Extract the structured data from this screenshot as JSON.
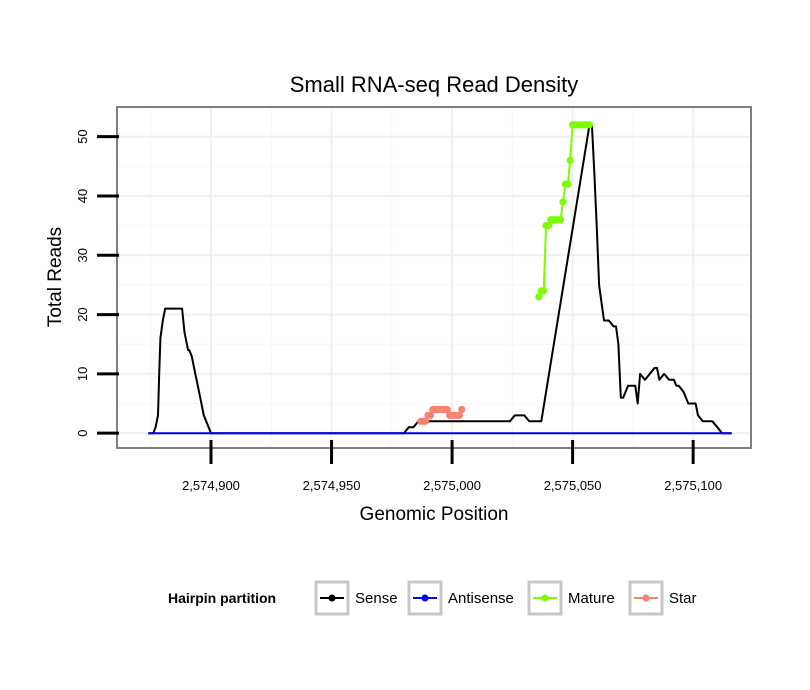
{
  "chart_data": {
    "type": "line",
    "title": "Small RNA-seq Read Density",
    "xlabel": "Genomic Position",
    "ylabel": "Total Reads",
    "xlim": [
      2574861,
      2575124
    ],
    "ylim": [
      -2.5,
      55
    ],
    "x_ticks": [
      2574900,
      2574950,
      2575000,
      2575050,
      2575100
    ],
    "x_tick_labels": [
      "2,574,900",
      "2,574,950",
      "2,575,000",
      "2,575,050",
      "2,575,100"
    ],
    "y_ticks": [
      0,
      10,
      20,
      30,
      40,
      50
    ],
    "y_tick_labels": [
      "0",
      "10",
      "20",
      "30",
      "40",
      "50"
    ],
    "grid": true,
    "legend": {
      "title": "Hairpin partition",
      "placement": "bottom",
      "entries": [
        {
          "label": "Sense",
          "color": "#000000"
        },
        {
          "label": "Antisense",
          "color": "#0000ff"
        },
        {
          "label": "Mature",
          "color": "#7cfc00"
        },
        {
          "label": "Star",
          "color": "#fa8072"
        }
      ]
    },
    "series": [
      {
        "name": "Sense",
        "color": "#000000",
        "x": [
          2574874,
          2574876,
          2574877,
          2574877.5,
          2574878,
          2574878.5,
          2574879,
          2574880,
          2574880.5,
          2574881,
          2574888,
          2574888.5,
          2574889,
          2574890,
          2574890.5,
          2574891,
          2574892,
          2574892.5,
          2574893,
          2574893.5,
          2574894,
          2574894.5,
          2574895,
          2574895.5,
          2574896,
          2574896.5,
          2574897,
          2574898,
          2574899,
          2574900,
          2574901,
          2574902,
          2574903,
          2574904,
          2574980,
          2574982,
          2574984,
          2574986,
          2575010,
          2575012,
          2575014,
          2575016,
          2575018,
          2575020,
          2575022,
          2575024,
          2575026,
          2575028,
          2575030,
          2575032,
          2575034,
          2575036,
          2575037,
          2575057,
          2575058,
          2575059,
          2575060,
          2575061,
          2575062,
          2575063,
          2575064,
          2575065,
          2575067,
          2575068,
          2575069,
          2575070,
          2575071,
          2575072,
          2575073,
          2575075,
          2575076,
          2575077,
          2575078,
          2575080,
          2575082,
          2575084,
          2575085,
          2575086,
          2575088,
          2575090,
          2575092,
          2575093,
          2575094,
          2575096,
          2575098,
          2575100,
          2575101,
          2575102,
          2575104,
          2575105,
          2575106,
          2575108,
          2575110,
          2575112,
          2575114,
          2575115,
          2575116
        ],
        "y": [
          0,
          0,
          1,
          2,
          3,
          10,
          16,
          19,
          20,
          21,
          21,
          19,
          17,
          15,
          14,
          14,
          13,
          12,
          11,
          10,
          9,
          8,
          7,
          6,
          5,
          4,
          3,
          2,
          1,
          0,
          0,
          0,
          0,
          0,
          0,
          1,
          1,
          2,
          2,
          2,
          2,
          2,
          2,
          2,
          2,
          2,
          3,
          3,
          3,
          2,
          2,
          2,
          2,
          52,
          52,
          44,
          35,
          25,
          22,
          19,
          19,
          19,
          18,
          18,
          15,
          6,
          6,
          7,
          8,
          8,
          8,
          5,
          10,
          9,
          10,
          11,
          11,
          9,
          10,
          9,
          9,
          8,
          8,
          7,
          5,
          5,
          5,
          3,
          2,
          2,
          2,
          2,
          1,
          0,
          0,
          0,
          0
        ]
      },
      {
        "name": "Antisense",
        "color": "#0000ff",
        "x": [
          2574874,
          2575116
        ],
        "y": [
          0,
          0
        ]
      },
      {
        "name": "Mature",
        "color": "#7cfc00",
        "x": [
          2575036,
          2575037,
          2575038,
          2575039,
          2575040,
          2575041,
          2575042,
          2575043,
          2575044,
          2575045,
          2575046,
          2575047,
          2575048,
          2575049,
          2575050,
          2575051,
          2575052,
          2575053,
          2575054,
          2575055,
          2575056,
          2575057
        ],
        "y": [
          23,
          24,
          24,
          35,
          35,
          36,
          36,
          36,
          36,
          36,
          39,
          42,
          42,
          46,
          52,
          52,
          52,
          52,
          52,
          52,
          52,
          52
        ]
      },
      {
        "name": "Star",
        "color": "#fa8072",
        "x": [
          2574987,
          2574988,
          2574989,
          2574990,
          2574991,
          2574992,
          2574993,
          2574994,
          2574995,
          2574996,
          2574997,
          2574998,
          2574999,
          2575000,
          2575001,
          2575002,
          2575003,
          2575004
        ],
        "y": [
          2,
          2,
          2,
          3,
          3,
          4,
          4,
          4,
          4,
          4,
          4,
          4,
          3,
          3,
          3,
          3,
          3,
          4
        ]
      }
    ]
  }
}
